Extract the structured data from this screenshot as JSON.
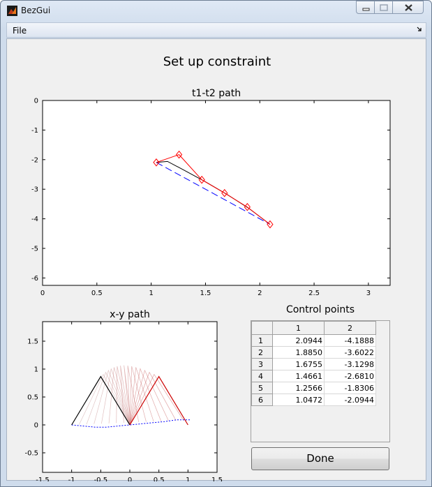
{
  "window": {
    "title": "BezGui",
    "controls": {
      "minimize": "minimize-icon",
      "maximize": "maximize-icon",
      "close": "close-icon"
    }
  },
  "menu": {
    "file_label": "File"
  },
  "page_title": "Set up constraint",
  "chart_data": [
    {
      "type": "line",
      "title": "t1-t2 path",
      "xlim": [
        0,
        3.2
      ],
      "ylim": [
        -6.25,
        0
      ],
      "xticks": [
        "0",
        "0.5",
        "1",
        "1.5",
        "2",
        "2.5",
        "3"
      ],
      "yticks": [
        "0",
        "-1",
        "-2",
        "-3",
        "-4",
        "-5",
        "-6"
      ],
      "series": [
        {
          "style": "red line with diamond markers",
          "color": "#ff0000",
          "x": [
            1.0472,
            1.2566,
            1.4661,
            1.6755,
            1.885,
            2.0944
          ],
          "y": [
            -2.0944,
            -1.8306,
            -2.681,
            -3.1298,
            -3.6022,
            -4.1888
          ]
        },
        {
          "style": "black curve",
          "color": "#000000",
          "x": [
            1.0472,
            1.15,
            1.3,
            1.5,
            1.7,
            1.9,
            2.0944
          ],
          "y": [
            -2.0944,
            -2.06,
            -2.35,
            -2.75,
            -3.18,
            -3.65,
            -4.1888
          ]
        },
        {
          "style": "blue dashed",
          "color": "#0000ff",
          "x": [
            1.0472,
            2.0944
          ],
          "y": [
            -2.0944,
            -4.1888
          ]
        }
      ]
    },
    {
      "type": "line",
      "title": "x-y path",
      "xlim": [
        -1.5,
        1.5
      ],
      "ylim": [
        -0.85,
        1.85
      ],
      "xticks": [
        "-1.5",
        "-1",
        "-0.5",
        "0",
        "0.5",
        "1",
        "1.5"
      ],
      "yticks": [
        "1.5",
        "1",
        "0.5",
        "0",
        "-0.5"
      ],
      "series": [
        {
          "style": "black start linkage",
          "color": "#000000",
          "x": [
            -1,
            -0.5,
            0
          ],
          "y": [
            0,
            0.866,
            0
          ]
        },
        {
          "style": "red end linkage",
          "color": "#cc0000",
          "x": [
            0,
            0.5,
            1
          ],
          "y": [
            0,
            0.866,
            0
          ]
        },
        {
          "style": "blue dotted path",
          "color": "#0000ff",
          "x": [
            -1,
            -0.8,
            -0.6,
            -0.4,
            -0.2,
            0,
            0.2,
            0.4,
            0.6,
            0.8,
            1.05
          ],
          "y": [
            0,
            -0.02,
            -0.04,
            -0.04,
            -0.02,
            0,
            0.02,
            0.04,
            0.06,
            0.09,
            0.09
          ]
        }
      ]
    }
  ],
  "control_points": {
    "title": "Control points",
    "columns": [
      "1",
      "2"
    ],
    "rows": [
      {
        "label": "1",
        "c1": "2.0944",
        "c2": "-4.1888"
      },
      {
        "label": "2",
        "c1": "1.8850",
        "c2": "-3.6022"
      },
      {
        "label": "3",
        "c1": "1.6755",
        "c2": "-3.1298"
      },
      {
        "label": "4",
        "c1": "1.4661",
        "c2": "-2.6810"
      },
      {
        "label": "5",
        "c1": "1.2566",
        "c2": "-1.8306"
      },
      {
        "label": "6",
        "c1": "1.0472",
        "c2": "-2.0944"
      }
    ]
  },
  "done_button": "Done"
}
